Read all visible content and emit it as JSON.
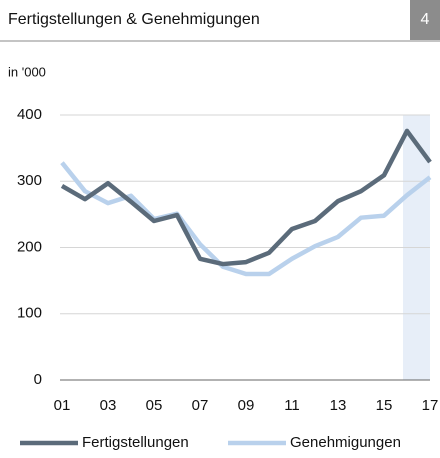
{
  "page_number": "4",
  "chart_data": {
    "type": "line",
    "title": "Fertigstellungen & Genehmigungen",
    "subtitle": "in '000",
    "categories": [
      "01",
      null,
      "03",
      null,
      "05",
      null,
      "07",
      null,
      "09",
      null,
      "11",
      null,
      "13",
      null,
      "15",
      null,
      "17"
    ],
    "series": [
      {
        "name": "Fertigstellungen",
        "color": "#5b6b7a",
        "values": [
          293,
          273,
          297,
          269,
          240,
          249,
          183,
          175,
          178,
          192,
          228,
          240,
          270,
          285,
          309,
          376,
          329
        ]
      },
      {
        "name": "Genehmigungen",
        "color": "#b9d1ec",
        "values": [
          328,
          285,
          267,
          278,
          243,
          251,
          205,
          171,
          160,
          160,
          183,
          202,
          216,
          245,
          248,
          279,
          306
        ]
      }
    ],
    "ylim": [
      0,
      400
    ],
    "yticks": [
      0,
      100,
      200,
      300,
      400
    ],
    "grid": true
  }
}
